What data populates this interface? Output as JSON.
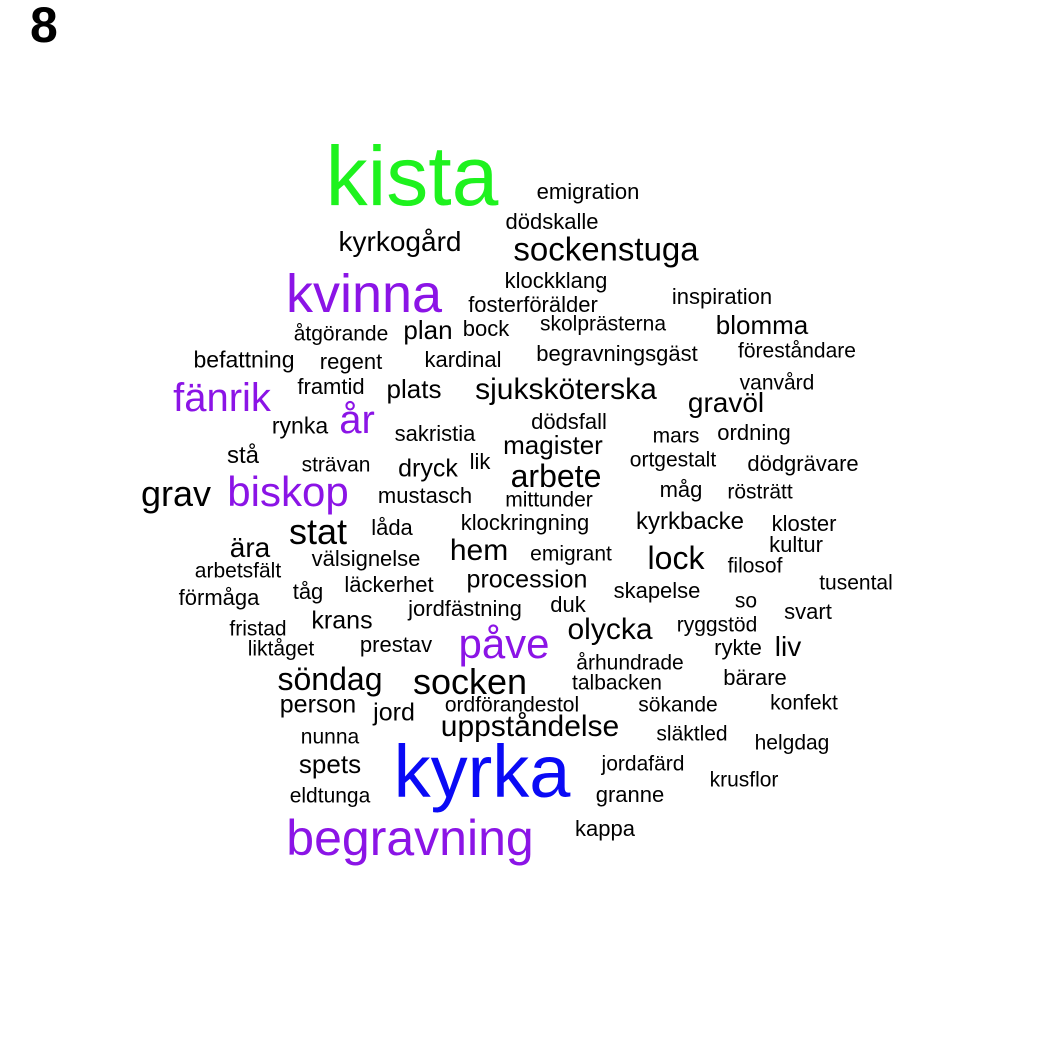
{
  "panel_label": "8",
  "colors": {
    "default": "#000000",
    "green": "#1EF21E",
    "purple": "#8B14E6",
    "blue": "#0A0AF5"
  },
  "words": [
    {
      "text": "kista",
      "weight": 84,
      "color": "green"
    },
    {
      "text": "kyrka",
      "weight": 74,
      "color": "blue"
    },
    {
      "text": "begravning",
      "weight": 50,
      "color": "purple"
    },
    {
      "text": "kvinna",
      "weight": 54,
      "color": "purple"
    },
    {
      "text": "påve",
      "weight": 42,
      "color": "purple"
    },
    {
      "text": "biskop",
      "weight": 42,
      "color": "purple"
    },
    {
      "text": "fänrik",
      "weight": 40,
      "color": "purple"
    },
    {
      "text": "år",
      "weight": 40,
      "color": "purple"
    },
    {
      "text": "socken",
      "weight": 36
    },
    {
      "text": "stat",
      "weight": 36
    },
    {
      "text": "grav",
      "weight": 36
    },
    {
      "text": "sockenstuga",
      "weight": 33
    },
    {
      "text": "arbete",
      "weight": 32
    },
    {
      "text": "söndag",
      "weight": 32
    },
    {
      "text": "lock",
      "weight": 32
    },
    {
      "text": "olycka",
      "weight": 30
    },
    {
      "text": "sjuksköterska",
      "weight": 30
    },
    {
      "text": "uppståndelse",
      "weight": 30
    },
    {
      "text": "hem",
      "weight": 30
    },
    {
      "text": "kyrkogård",
      "weight": 28
    },
    {
      "text": "ära",
      "weight": 28
    },
    {
      "text": "gravöl",
      "weight": 28
    },
    {
      "text": "liv",
      "weight": 28
    },
    {
      "text": "plan",
      "weight": 26
    },
    {
      "text": "plats",
      "weight": 26
    },
    {
      "text": "magister",
      "weight": 26
    },
    {
      "text": "spets",
      "weight": 26
    },
    {
      "text": "blomma",
      "weight": 26
    },
    {
      "text": "dryck",
      "weight": 25
    },
    {
      "text": "procession",
      "weight": 25
    },
    {
      "text": "krans",
      "weight": 25
    },
    {
      "text": "jord",
      "weight": 25
    },
    {
      "text": "person",
      "weight": 25
    },
    {
      "text": "kyrkbacke",
      "weight": 24
    },
    {
      "text": "emigration",
      "weight": 22
    },
    {
      "text": "dödskalle",
      "weight": 22
    },
    {
      "text": "klockklang",
      "weight": 22
    },
    {
      "text": "fosterförälder",
      "weight": 22
    },
    {
      "text": "inspiration",
      "weight": 22
    },
    {
      "text": "åtgörande",
      "weight": 21
    },
    {
      "text": "bock",
      "weight": 22
    },
    {
      "text": "skolprästerna",
      "weight": 21
    },
    {
      "text": "befattning",
      "weight": 23
    },
    {
      "text": "regent",
      "weight": 22
    },
    {
      "text": "kardinal",
      "weight": 22
    },
    {
      "text": "begravningsgäst",
      "weight": 22
    },
    {
      "text": "föreståndare",
      "weight": 21
    },
    {
      "text": "framtid",
      "weight": 22
    },
    {
      "text": "vanvård",
      "weight": 21
    },
    {
      "text": "dödsfall",
      "weight": 22
    },
    {
      "text": "rynka",
      "weight": 23
    },
    {
      "text": "sakristia",
      "weight": 22
    },
    {
      "text": "mars",
      "weight": 21
    },
    {
      "text": "ordning",
      "weight": 22
    },
    {
      "text": "stå",
      "weight": 24
    },
    {
      "text": "strävan",
      "weight": 21
    },
    {
      "text": "lik",
      "weight": 22
    },
    {
      "text": "ortgestalt",
      "weight": 21
    },
    {
      "text": "dödgrävare",
      "weight": 22
    },
    {
      "text": "mustasch",
      "weight": 22
    },
    {
      "text": "mittunder",
      "weight": 21
    },
    {
      "text": "måg",
      "weight": 22
    },
    {
      "text": "rösträtt",
      "weight": 21
    },
    {
      "text": "låda",
      "weight": 22
    },
    {
      "text": "klockringning",
      "weight": 22
    },
    {
      "text": "kloster",
      "weight": 22
    },
    {
      "text": "kultur",
      "weight": 22
    },
    {
      "text": "välsignelse",
      "weight": 22
    },
    {
      "text": "emigrant",
      "weight": 21
    },
    {
      "text": "arbetsfält",
      "weight": 21
    },
    {
      "text": "filosof",
      "weight": 21
    },
    {
      "text": "tåg",
      "weight": 22
    },
    {
      "text": "läckerhet",
      "weight": 22
    },
    {
      "text": "tusental",
      "weight": 21
    },
    {
      "text": "förmåga",
      "weight": 22
    },
    {
      "text": "skapelse",
      "weight": 22
    },
    {
      "text": "so",
      "weight": 21
    },
    {
      "text": "jordfästning",
      "weight": 22
    },
    {
      "text": "duk",
      "weight": 22
    },
    {
      "text": "svart",
      "weight": 22
    },
    {
      "text": "fristad",
      "weight": 21
    },
    {
      "text": "ryggstöd",
      "weight": 21
    },
    {
      "text": "liktåget",
      "weight": 21
    },
    {
      "text": "prestav",
      "weight": 22
    },
    {
      "text": "rykte",
      "weight": 22
    },
    {
      "text": "århundrade",
      "weight": 21
    },
    {
      "text": "talbacken",
      "weight": 21
    },
    {
      "text": "bärare",
      "weight": 22
    },
    {
      "text": "ordförandestol",
      "weight": 21
    },
    {
      "text": "sökande",
      "weight": 21
    },
    {
      "text": "konfekt",
      "weight": 21
    },
    {
      "text": "nunna",
      "weight": 21
    },
    {
      "text": "släktled",
      "weight": 21
    },
    {
      "text": "helgdag",
      "weight": 21
    },
    {
      "text": "jordafärd",
      "weight": 21
    },
    {
      "text": "krusflor",
      "weight": 21
    },
    {
      "text": "eldtunga",
      "weight": 21
    },
    {
      "text": "granne",
      "weight": 22
    },
    {
      "text": "kappa",
      "weight": 22
    }
  ]
}
